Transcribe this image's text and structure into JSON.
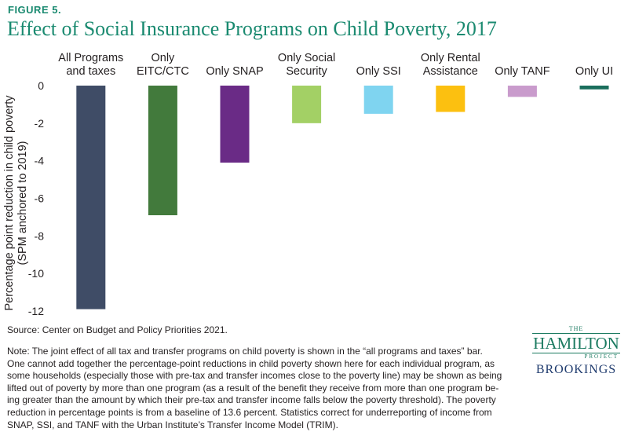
{
  "figure_label": "FIGURE 5.",
  "chart_data": {
    "type": "bar",
    "title": "Effect of Social Insurance Programs on Child Poverty, 2017",
    "categories": [
      [
        "All Programs",
        "and taxes"
      ],
      [
        "Only",
        "EITC/CTC"
      ],
      [
        "Only SNAP"
      ],
      [
        "Only Social",
        "Security"
      ],
      [
        "Only SSI"
      ],
      [
        "Only Rental",
        "Assistance"
      ],
      [
        "Only TANF"
      ],
      [
        "Only UI"
      ]
    ],
    "values": [
      -11.9,
      -6.9,
      -4.1,
      -2.0,
      -1.5,
      -1.4,
      -0.6,
      -0.2
    ],
    "colors": [
      "#3f4c66",
      "#427a3c",
      "#6a2b86",
      "#a3d065",
      "#7fd4f0",
      "#fcc010",
      "#c99bcc",
      "#1a6e5c"
    ],
    "ylabel": [
      "Percentage point reduction in child poverty",
      "(SPM anchored to 2019)"
    ],
    "yticks": [
      0,
      -2,
      -4,
      -6,
      -8,
      -10,
      -12
    ],
    "ylim": [
      -12,
      0
    ],
    "xlabel": "",
    "grid": false
  },
  "source": "Source:  Center on Budget and Policy Priorities 2021.",
  "note_lines": [
    "Note: The joint effect of all tax and transfer programs on child poverty is shown in the “all programs and taxes” bar.",
    "One cannot add together the percentage-point reductions in child poverty shown here for each individual program, as",
    "some households (especially those with pre-tax and transfer incomes close to the poverty line) may be shown as being",
    "lifted out of poverty by more than one program (as a result of the benefit they receive from more than one program be-",
    "ing greater than the amount by which their pre-tax and transfer income falls below the poverty threshold). The poverty",
    "reduction in percentage points is from a baseline of 13.6 percent. Statistics correct for underreporting of income from",
    "SNAP, SSI, and TANF with the Urban Institute’s Transfer Income Model (TRIM)."
  ],
  "logo": {
    "the": "THE",
    "name": "HAMILTON",
    "project": "PROJECT",
    "brookings": "BROOKINGS"
  }
}
